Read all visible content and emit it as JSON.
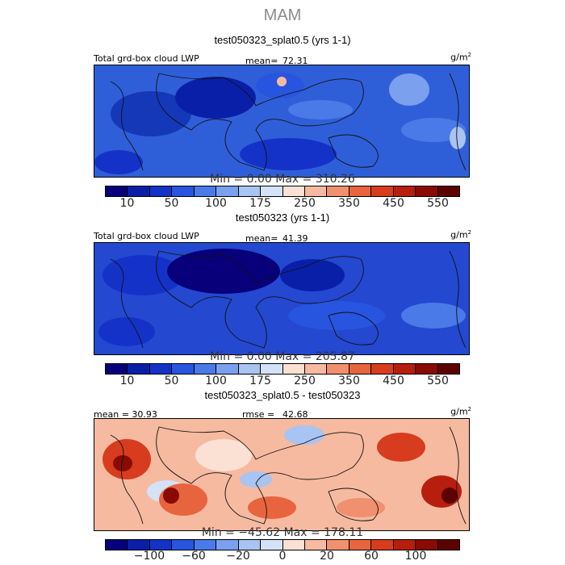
{
  "season": "MAM",
  "panels": [
    {
      "title": "test050323_splat0.5 (yrs 1-1)",
      "left_label": "Total grd-box cloud LWP",
      "mean_label": "mean=",
      "mean_value": "72.31",
      "units": "g/m",
      "units_exp": "2",
      "minmax": "Min =   0.00 Max = 310.26",
      "ticks": [
        "10",
        "50",
        "100",
        "175",
        "250",
        "350",
        "450",
        "550"
      ],
      "palette": "blues"
    },
    {
      "title": "test050323 (yrs 1-1)",
      "left_label": "Total grd-box cloud LWP",
      "mean_label": "mean=",
      "mean_value": "41.39",
      "units": "g/m",
      "units_exp": "2",
      "minmax": "Min =   0.00 Max = 205.87",
      "ticks": [
        "10",
        "50",
        "100",
        "175",
        "250",
        "350",
        "450",
        "550"
      ],
      "palette": "blues_dark"
    },
    {
      "title": "test050323_splat0.5 - test050323",
      "left_label": "mean =  30.93",
      "mean_label": "rmse =",
      "mean_value": "42.68",
      "units": "g/m",
      "units_exp": "2",
      "minmax": "Min = −45.62 Max = 178.11",
      "ticks": [
        "−100",
        "−60",
        "−20",
        "0",
        "20",
        "60",
        "100"
      ],
      "palette": "reds"
    }
  ],
  "colorbar_colors": [
    "#08007a",
    "#0a1fa8",
    "#1432c8",
    "#2855e0",
    "#4a7ae8",
    "#7aa0ee",
    "#a8c4f2",
    "#d4e2f8",
    "#fbe0d4",
    "#f6baa0",
    "#f0906e",
    "#e8643e",
    "#d83c1e",
    "#b81e0e",
    "#8a0a04",
    "#5c0200"
  ]
}
